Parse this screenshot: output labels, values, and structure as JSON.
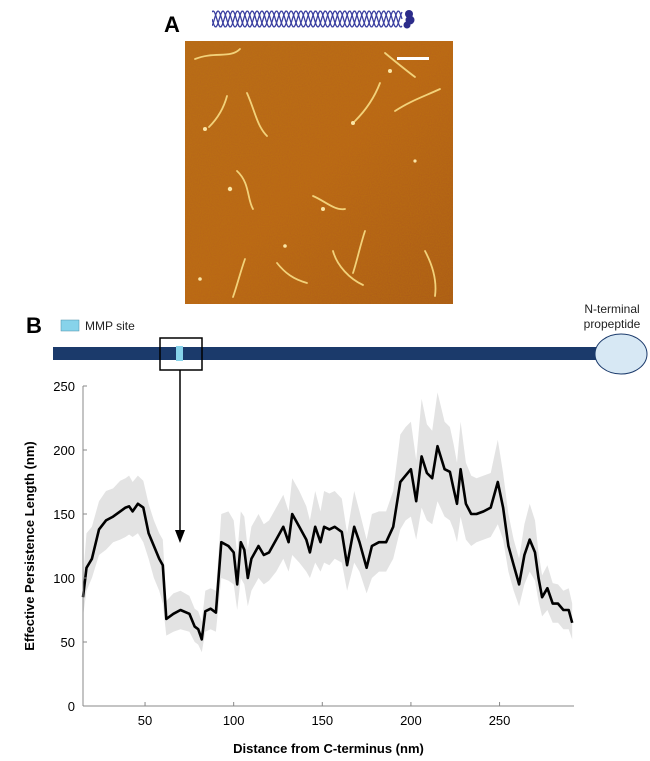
{
  "panel_a": {
    "label": "A"
  },
  "panel_b": {
    "label": "B"
  },
  "schema": {
    "legend_label": "MMP site",
    "propeptide_line1": "N-terminal",
    "propeptide_line2": "propeptide",
    "colors": {
      "rod": "#1b3a6b",
      "mmp": "#87d3ea",
      "propeptide": "#d7e8f4"
    }
  },
  "chart_data": {
    "type": "line",
    "xlabel": "Distance from C-terminus (nm)",
    "ylabel": "Effective Persistence Length (nm)",
    "xlim": [
      15,
      292
    ],
    "ylim": [
      0,
      250
    ],
    "xticks": [
      50,
      100,
      150,
      200,
      250
    ],
    "yticks": [
      0,
      50,
      100,
      150,
      200,
      250
    ],
    "grid": false,
    "series": [
      {
        "color": "#000000",
        "band_color": "#e3e3e3",
        "x": [
          15,
          17,
          20,
          24,
          28,
          32,
          36,
          39,
          41,
          43,
          46,
          49,
          52,
          55,
          58,
          60,
          62,
          66,
          70,
          75,
          78,
          80,
          82,
          84,
          87,
          90,
          93,
          97,
          100,
          102,
          104,
          106,
          108,
          110,
          114,
          117,
          120,
          124,
          128,
          131,
          133,
          137,
          141,
          143,
          146,
          149,
          151,
          154,
          157,
          161,
          164,
          168,
          171,
          175,
          178,
          182,
          186,
          190,
          194,
          197,
          200,
          203,
          206,
          209,
          212,
          215,
          219,
          222,
          224,
          226,
          228,
          231,
          234,
          237,
          241,
          245,
          249,
          252,
          255,
          258,
          261,
          264,
          267,
          270,
          272,
          274,
          277,
          280,
          283,
          286,
          289,
          291
        ],
        "y": [
          85,
          108,
          115,
          138,
          145,
          148,
          152,
          155,
          156,
          152,
          158,
          155,
          135,
          125,
          115,
          110,
          68,
          72,
          75,
          72,
          62,
          60,
          52,
          74,
          76,
          73,
          128,
          125,
          120,
          95,
          128,
          122,
          100,
          115,
          125,
          118,
          120,
          130,
          140,
          128,
          150,
          140,
          130,
          120,
          140,
          128,
          140,
          138,
          140,
          136,
          110,
          140,
          128,
          108,
          125,
          128,
          128,
          140,
          175,
          180,
          185,
          160,
          195,
          182,
          178,
          203,
          185,
          183,
          170,
          158,
          185,
          158,
          150,
          150,
          152,
          155,
          175,
          155,
          125,
          110,
          95,
          118,
          130,
          120,
          100,
          85,
          92,
          80,
          80,
          75,
          75,
          65
        ],
        "y_lower": [
          70,
          90,
          100,
          118,
          122,
          128,
          130,
          132,
          134,
          132,
          135,
          128,
          115,
          100,
          90,
          80,
          55,
          58,
          60,
          58,
          50,
          48,
          42,
          58,
          60,
          58,
          100,
          98,
          95,
          75,
          100,
          95,
          78,
          90,
          100,
          95,
          98,
          105,
          115,
          105,
          118,
          112,
          105,
          100,
          112,
          105,
          112,
          110,
          115,
          112,
          90,
          112,
          105,
          88,
          100,
          105,
          105,
          115,
          138,
          145,
          148,
          130,
          155,
          145,
          142,
          160,
          148,
          145,
          138,
          128,
          148,
          130,
          125,
          128,
          130,
          132,
          142,
          130,
          105,
          90,
          78,
          95,
          105,
          98,
          82,
          70,
          75,
          65,
          65,
          60,
          60,
          52
        ],
        "y_upper": [
          100,
          135,
          140,
          160,
          168,
          170,
          176,
          178,
          180,
          175,
          180,
          176,
          158,
          145,
          135,
          130,
          82,
          88,
          90,
          86,
          76,
          74,
          66,
          90,
          92,
          90,
          150,
          152,
          145,
          118,
          152,
          148,
          122,
          140,
          150,
          142,
          145,
          155,
          165,
          152,
          178,
          168,
          156,
          145,
          168,
          152,
          168,
          166,
          168,
          162,
          135,
          168,
          152,
          130,
          150,
          152,
          152,
          168,
          212,
          218,
          222,
          192,
          240,
          220,
          215,
          245,
          222,
          218,
          205,
          190,
          222,
          190,
          180,
          178,
          180,
          182,
          208,
          182,
          150,
          130,
          115,
          142,
          158,
          145,
          120,
          102,
          110,
          96,
          95,
          90,
          92,
          80
        ]
      }
    ]
  }
}
